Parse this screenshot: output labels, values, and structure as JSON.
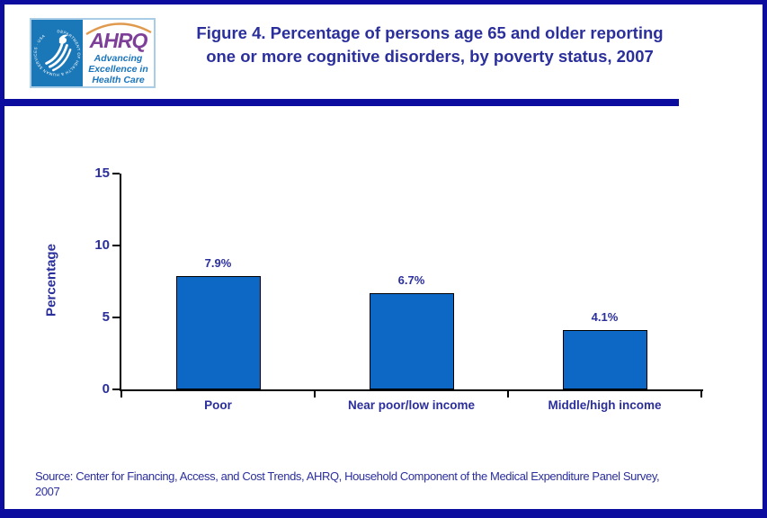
{
  "header": {
    "logo": {
      "hhs_seal_text": "DEPARTMENT OF HEALTH & HUMAN SERVICES - USA",
      "ahrq_acronym": "AHRQ",
      "ahrq_tagline_line1": "Advancing",
      "ahrq_tagline_line2": "Excellence in",
      "ahrq_tagline_line3": "Health Care"
    },
    "title_line1": "Figure 4. Percentage of persons age 65 and older reporting",
    "title_line2": "one or more cognitive disorders, by poverty status, 2007"
  },
  "chart_data": {
    "type": "bar",
    "title": "Figure 4. Percentage of persons age 65 and older reporting one or more cognitive disorders, by poverty status, 2007",
    "categories": [
      "Poor",
      "Near poor/low income",
      "Middle/high income"
    ],
    "values": [
      7.9,
      6.7,
      4.1
    ],
    "value_labels": [
      "7.9%",
      "6.7%",
      "4.1%"
    ],
    "xlabel": "",
    "ylabel": "Percentage",
    "yticks": [
      0,
      5,
      10,
      15
    ],
    "ylim": [
      0,
      15
    ],
    "grid": false,
    "legend": "none",
    "bar_color": "#0d68c5",
    "bar_border_color": "#000000",
    "label_color": "#2b2f9c"
  },
  "source": {
    "line1": "Source: Center for Financing, Access, and Cost Trends, AHRQ, Household Component of the Medical Expenditure Panel Survey,",
    "line2": "2007",
    "full_text": "Source: Center for Financing, Access, and Cost Trends, AHRQ, Household Component of the Medical Expenditure Panel Survey, 2007"
  },
  "colors": {
    "page_border": "#0c0c9e",
    "header_bar": "#0c0c9e",
    "title_text": "#2b2f9c",
    "bar_fill": "#0d68c5",
    "hhs_blue": "#1b78b8",
    "ahrq_purple": "#7d3f98",
    "ahrq_arc_orange": "#e09a4e",
    "tagline_blue": "#1a75bc"
  }
}
